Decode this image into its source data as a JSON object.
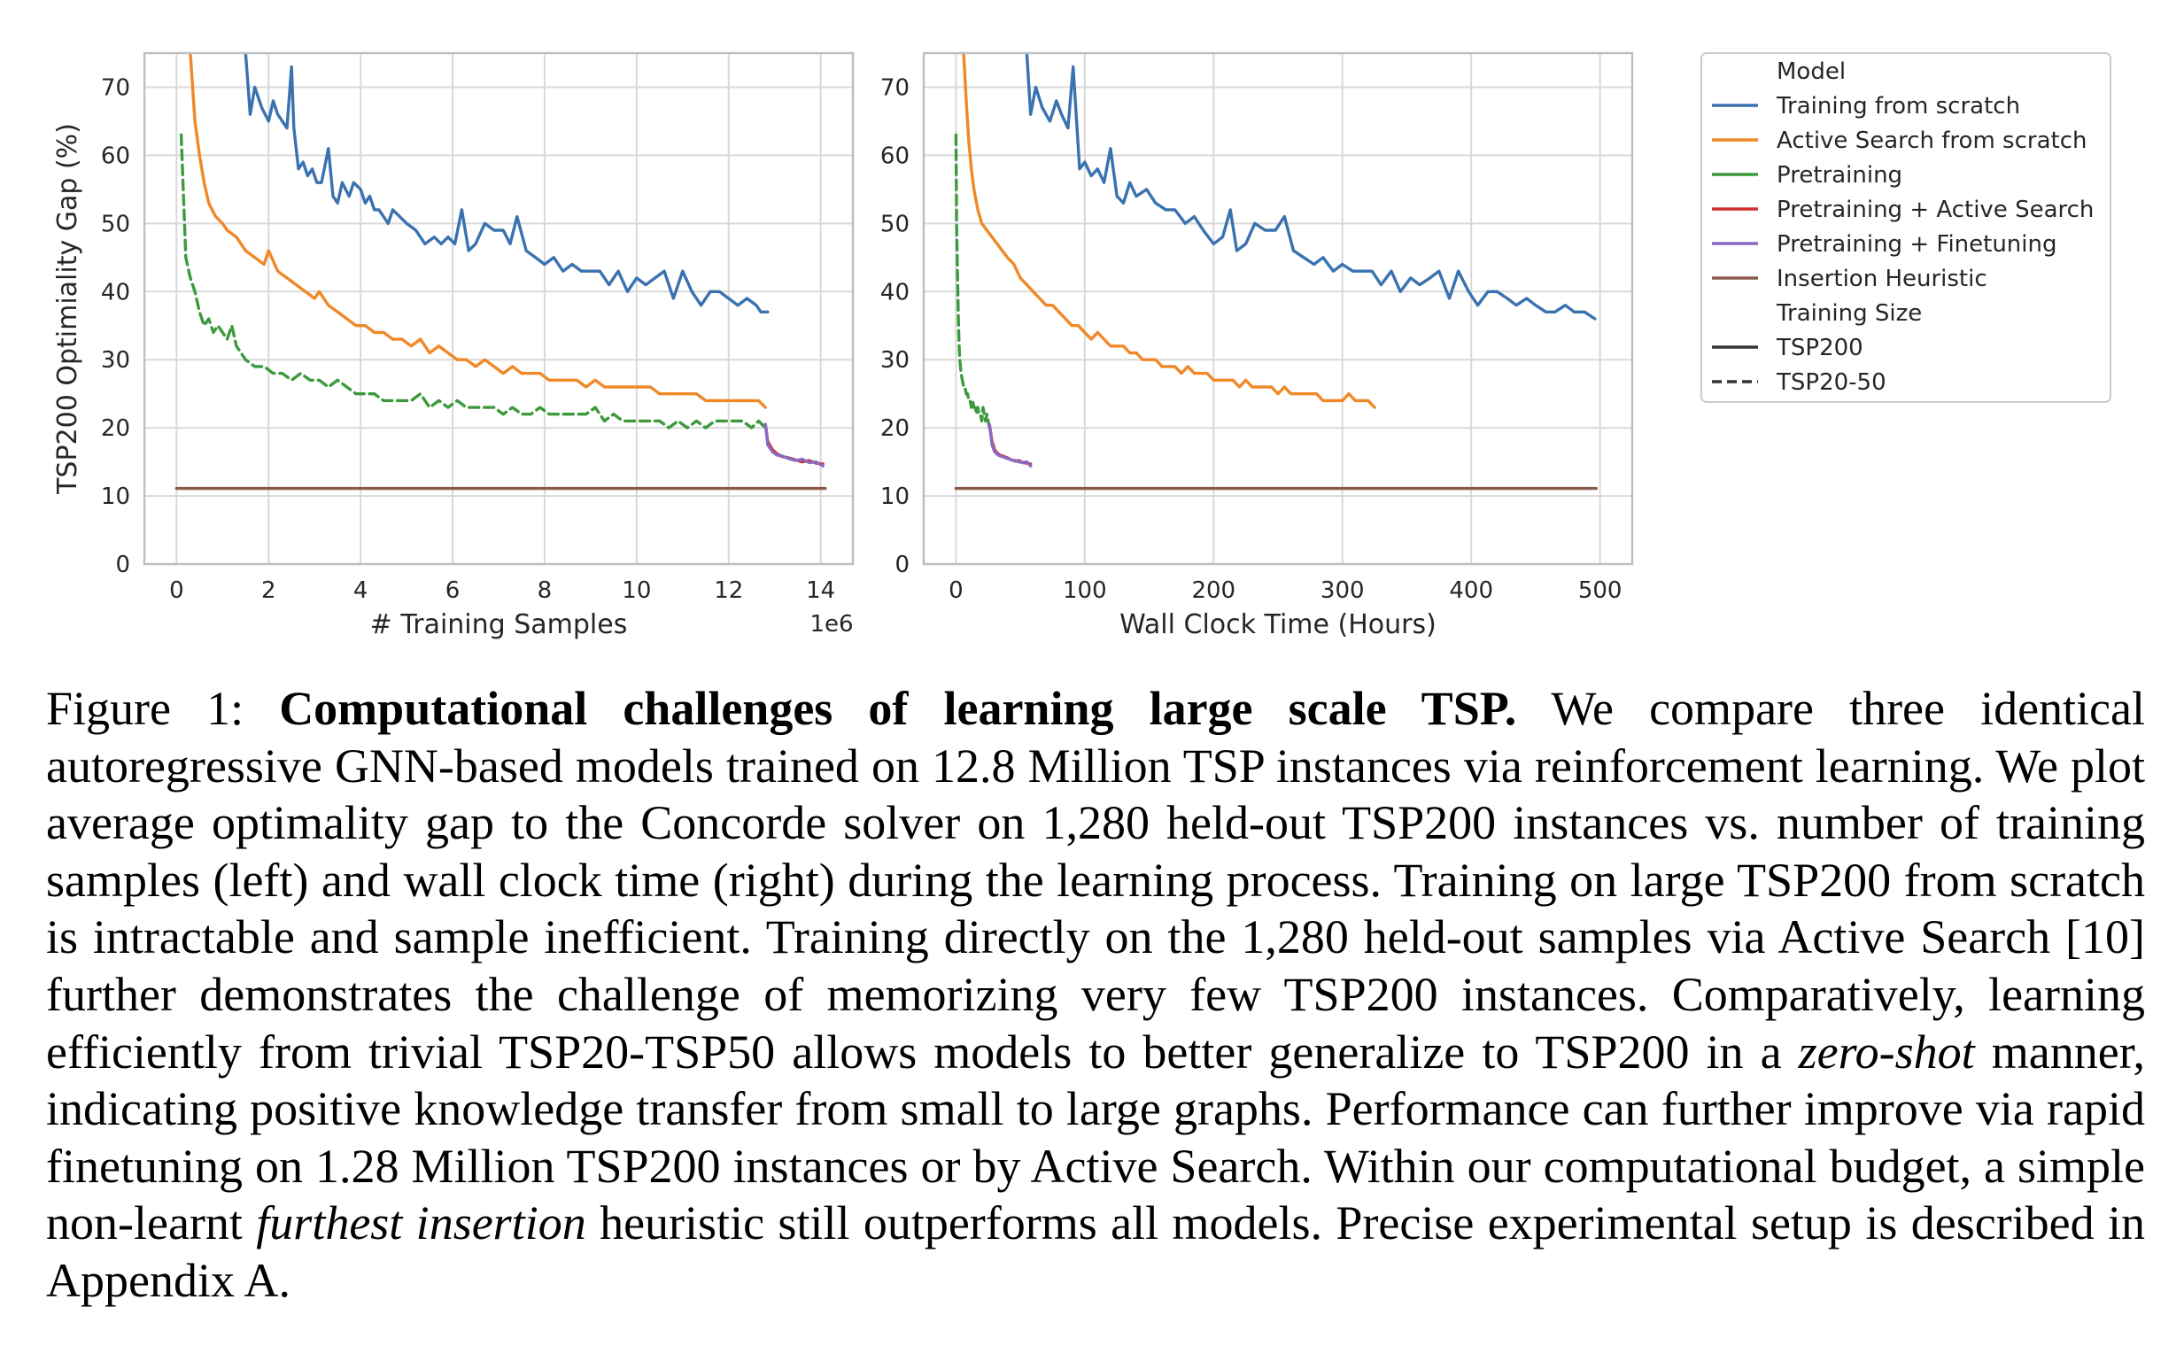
{
  "chart_data": [
    {
      "type": "line",
      "panel": "left",
      "xlabel": "# Training Samples",
      "ylabel": "TSP200 Optimiality Gap (%)",
      "x_offset_label": "1e6",
      "xlim": [
        -0.7,
        14.7
      ],
      "ylim": [
        0,
        75
      ],
      "xticks": [
        0,
        2,
        4,
        6,
        8,
        10,
        12,
        14
      ],
      "yticks": [
        0,
        10,
        20,
        30,
        40,
        50,
        60,
        70
      ],
      "grid": true,
      "series": [
        {
          "name": "Training from scratch",
          "style": "solid",
          "color": "#3a72b0",
          "x": [
            1.5,
            1.6,
            1.7,
            1.85,
            2.0,
            2.1,
            2.2,
            2.3,
            2.4,
            2.5,
            2.55,
            2.65,
            2.75,
            2.85,
            2.95,
            3.05,
            3.15,
            3.3,
            3.4,
            3.5,
            3.6,
            3.75,
            3.85,
            4.0,
            4.1,
            4.2,
            4.3,
            4.4,
            4.6,
            4.7,
            4.85,
            5.0,
            5.2,
            5.4,
            5.6,
            5.75,
            5.9,
            6.05,
            6.2,
            6.35,
            6.5,
            6.7,
            6.9,
            7.1,
            7.25,
            7.4,
            7.6,
            7.8,
            8.0,
            8.2,
            8.4,
            8.6,
            8.8,
            9.0,
            9.2,
            9.4,
            9.6,
            9.8,
            10.0,
            10.2,
            10.4,
            10.6,
            10.8,
            11.0,
            11.2,
            11.4,
            11.6,
            11.8,
            12.0,
            12.2,
            12.4,
            12.6,
            12.7,
            12.85
          ],
          "y": [
            75,
            66,
            70,
            67,
            65,
            68,
            66,
            65,
            64,
            73,
            64,
            58,
            59,
            57,
            58,
            56,
            56,
            61,
            54,
            53,
            56,
            54,
            56,
            55,
            53,
            54,
            52,
            52,
            50,
            52,
            51,
            50,
            49,
            47,
            48,
            47,
            48,
            47,
            52,
            46,
            47,
            50,
            49,
            49,
            47,
            51,
            46,
            45,
            44,
            45,
            43,
            44,
            43,
            43,
            43,
            41,
            43,
            40,
            42,
            41,
            42,
            43,
            39,
            43,
            40,
            38,
            40,
            40,
            39,
            38,
            39,
            38,
            37,
            37
          ]
        },
        {
          "name": "Active Search from scratch",
          "style": "solid",
          "color": "#f08828",
          "x": [
            0.3,
            0.4,
            0.5,
            0.6,
            0.7,
            0.85,
            1.0,
            1.1,
            1.3,
            1.5,
            1.7,
            1.9,
            2.0,
            2.2,
            2.4,
            2.6,
            2.8,
            3.0,
            3.1,
            3.3,
            3.5,
            3.7,
            3.9,
            4.1,
            4.3,
            4.5,
            4.7,
            4.9,
            5.1,
            5.3,
            5.5,
            5.7,
            5.9,
            6.1,
            6.3,
            6.5,
            6.7,
            6.9,
            7.1,
            7.3,
            7.5,
            7.7,
            7.9,
            8.1,
            8.3,
            8.5,
            8.7,
            8.9,
            9.1,
            9.3,
            9.5,
            9.7,
            9.9,
            10.1,
            10.3,
            10.5,
            10.7,
            10.9,
            11.1,
            11.3,
            11.5,
            11.7,
            11.9,
            12.1,
            12.3,
            12.5,
            12.65,
            12.8
          ],
          "y": [
            75,
            65,
            60,
            56,
            53,
            51,
            50,
            49,
            48,
            46,
            45,
            44,
            46,
            43,
            42,
            41,
            40,
            39,
            40,
            38,
            37,
            36,
            35,
            35,
            34,
            34,
            33,
            33,
            32,
            33,
            31,
            32,
            31,
            30,
            30,
            29,
            30,
            29,
            28,
            29,
            28,
            28,
            28,
            27,
            27,
            27,
            27,
            26,
            27,
            26,
            26,
            26,
            26,
            26,
            26,
            25,
            25,
            25,
            25,
            25,
            24,
            24,
            24,
            24,
            24,
            24,
            24,
            23
          ]
        },
        {
          "name": "Pretraining",
          "style": "dashed",
          "color": "#3d9a3d",
          "x": [
            0.1,
            0.2,
            0.3,
            0.4,
            0.5,
            0.6,
            0.7,
            0.8,
            0.9,
            1.0,
            1.1,
            1.2,
            1.3,
            1.4,
            1.5,
            1.7,
            1.9,
            2.1,
            2.3,
            2.5,
            2.7,
            2.9,
            3.1,
            3.3,
            3.5,
            3.7,
            3.9,
            4.1,
            4.3,
            4.5,
            4.7,
            4.9,
            5.1,
            5.3,
            5.5,
            5.7,
            5.9,
            6.1,
            6.3,
            6.5,
            6.7,
            6.9,
            7.1,
            7.3,
            7.5,
            7.7,
            7.9,
            8.1,
            8.3,
            8.5,
            8.7,
            8.9,
            9.1,
            9.3,
            9.5,
            9.7,
            9.9,
            10.1,
            10.3,
            10.5,
            10.7,
            10.9,
            11.1,
            11.3,
            11.5,
            11.7,
            11.9,
            12.1,
            12.3,
            12.5,
            12.65,
            12.8
          ],
          "y": [
            63,
            45,
            42,
            40,
            37,
            35,
            36,
            34,
            35,
            34,
            33,
            35,
            32,
            31,
            30,
            29,
            29,
            28,
            28,
            27,
            28,
            27,
            27,
            26,
            27,
            26,
            25,
            25,
            25,
            24,
            24,
            24,
            24,
            25,
            23,
            24,
            23,
            24,
            23,
            23,
            23,
            23,
            22,
            23,
            22,
            22,
            23,
            22,
            22,
            22,
            22,
            22,
            23,
            21,
            22,
            21,
            21,
            21,
            21,
            21,
            20,
            21,
            20,
            21,
            20,
            21,
            21,
            21,
            21,
            20,
            21,
            20
          ]
        },
        {
          "name": "Pretraining + Active Search",
          "style": "solid",
          "color": "#d03030",
          "x": [
            12.8,
            12.85,
            12.95,
            13.05,
            13.15,
            13.3,
            13.45,
            13.6,
            13.75,
            13.9,
            14.05
          ],
          "y": [
            20.5,
            18,
            16.8,
            16.2,
            15.8,
            15.6,
            15.3,
            15.0,
            15.2,
            14.8,
            14.7
          ]
        },
        {
          "name": "Pretraining + Finetuning",
          "style": "solid",
          "color": "#8a6bc4",
          "x": [
            12.8,
            12.85,
            12.95,
            13.05,
            13.15,
            13.3,
            13.45,
            13.6,
            13.75,
            13.9,
            14.05
          ],
          "y": [
            20.5,
            17.5,
            16.5,
            16.0,
            15.9,
            15.5,
            15.2,
            15.4,
            14.9,
            15.0,
            14.4
          ]
        },
        {
          "name": "Insertion Heuristic",
          "style": "solid",
          "color": "#8c5a4a",
          "x": [
            0,
            14.1
          ],
          "y": [
            11.1,
            11.1
          ]
        }
      ]
    },
    {
      "type": "line",
      "panel": "right",
      "xlabel": "Wall Clock Time (Hours)",
      "ylabel": "",
      "xlim": [
        -25,
        525
      ],
      "ylim": [
        0,
        75
      ],
      "xticks": [
        0,
        100,
        200,
        300,
        400,
        500
      ],
      "yticks": [
        0,
        10,
        20,
        30,
        40,
        50,
        60,
        70
      ],
      "grid": true,
      "series": [
        {
          "name": "Training from scratch",
          "style": "solid",
          "color": "#3a72b0",
          "x": [
            55,
            58,
            62,
            67,
            73,
            78,
            82,
            87,
            91,
            94,
            96,
            100,
            105,
            110,
            115,
            120,
            125,
            130,
            135,
            140,
            148,
            155,
            163,
            170,
            178,
            185,
            192,
            200,
            207,
            213,
            218,
            225,
            232,
            240,
            248,
            255,
            262,
            270,
            278,
            285,
            293,
            300,
            308,
            315,
            323,
            330,
            338,
            345,
            353,
            360,
            368,
            375,
            383,
            390,
            398,
            405,
            413,
            420,
            428,
            435,
            443,
            450,
            458,
            465,
            473,
            480,
            488,
            496
          ],
          "y": [
            75,
            66,
            70,
            67,
            65,
            68,
            66,
            64,
            73,
            64,
            58,
            59,
            57,
            58,
            56,
            61,
            54,
            53,
            56,
            54,
            55,
            53,
            52,
            52,
            50,
            51,
            49,
            47,
            48,
            52,
            46,
            47,
            50,
            49,
            49,
            51,
            46,
            45,
            44,
            45,
            43,
            44,
            43,
            43,
            43,
            41,
            43,
            40,
            42,
            41,
            42,
            43,
            39,
            43,
            40,
            38,
            40,
            40,
            39,
            38,
            39,
            38,
            37,
            37,
            38,
            37,
            37,
            36
          ]
        },
        {
          "name": "Active Search from scratch",
          "style": "solid",
          "color": "#f08828",
          "x": [
            6,
            8,
            10,
            12,
            14,
            17,
            20,
            24,
            28,
            32,
            36,
            40,
            45,
            50,
            55,
            60,
            65,
            70,
            75,
            80,
            85,
            90,
            95,
            100,
            105,
            110,
            115,
            120,
            125,
            130,
            135,
            140,
            145,
            150,
            155,
            160,
            165,
            170,
            175,
            180,
            185,
            190,
            195,
            200,
            205,
            210,
            215,
            220,
            225,
            230,
            235,
            240,
            245,
            250,
            255,
            260,
            265,
            270,
            275,
            280,
            285,
            290,
            295,
            300,
            305,
            310,
            315,
            320,
            325
          ],
          "y": [
            75,
            68,
            62,
            58,
            55,
            52,
            50,
            49,
            48,
            47,
            46,
            45,
            44,
            42,
            41,
            40,
            39,
            38,
            38,
            37,
            36,
            35,
            35,
            34,
            33,
            34,
            33,
            32,
            32,
            32,
            31,
            31,
            30,
            30,
            30,
            29,
            29,
            29,
            28,
            29,
            28,
            28,
            28,
            27,
            27,
            27,
            27,
            26,
            27,
            26,
            26,
            26,
            26,
            25,
            26,
            25,
            25,
            25,
            25,
            25,
            24,
            24,
            24,
            24,
            25,
            24,
            24,
            24,
            23
          ]
        },
        {
          "name": "Pretraining",
          "style": "dashed",
          "color": "#3d9a3d",
          "x": [
            0,
            0.5,
            1,
            1.5,
            2,
            2.5,
            3,
            3.5,
            4,
            5,
            6,
            7,
            8,
            9,
            10,
            11,
            12,
            13,
            14,
            15,
            16,
            17,
            18,
            19,
            20,
            21,
            22,
            23,
            24,
            25,
            26
          ],
          "y": [
            63,
            50,
            45,
            40,
            35,
            32,
            30,
            29,
            28,
            27,
            26,
            26,
            25,
            25,
            24,
            24,
            23,
            24,
            23,
            23,
            22,
            23,
            22,
            22,
            21,
            23,
            22,
            21,
            22,
            21,
            20
          ]
        },
        {
          "name": "Pretraining + Active Search",
          "style": "solid",
          "color": "#d03030",
          "x": [
            26,
            28,
            30,
            32,
            34,
            37,
            40,
            43,
            46,
            49,
            52,
            55,
            58
          ],
          "y": [
            20.5,
            18,
            16.8,
            16.3,
            16,
            15.8,
            15.6,
            15.3,
            15.1,
            15.2,
            14.9,
            14.8,
            14.7
          ]
        },
        {
          "name": "Pretraining + Finetuning",
          "style": "solid",
          "color": "#8a6bc4",
          "x": [
            26,
            28,
            30,
            32,
            34,
            37,
            40,
            43,
            46,
            49,
            52,
            55,
            58
          ],
          "y": [
            20.5,
            17.5,
            16.5,
            16.1,
            15.9,
            15.7,
            15.5,
            15.3,
            15.2,
            15.0,
            14.9,
            15.0,
            14.4
          ]
        },
        {
          "name": "Insertion Heuristic",
          "style": "solid",
          "color": "#8c5a4a",
          "x": [
            0,
            497
          ],
          "y": [
            11.1,
            11.1
          ]
        }
      ]
    }
  ],
  "legend": {
    "placement": "right",
    "model_title": "Model",
    "models": [
      {
        "label": "Training from scratch",
        "color": "#3a72b0"
      },
      {
        "label": "Active Search from scratch",
        "color": "#f08828"
      },
      {
        "label": "Pretraining",
        "color": "#3d9a3d"
      },
      {
        "label": "Pretraining + Active Search",
        "color": "#d03030"
      },
      {
        "label": "Pretraining + Finetuning",
        "color": "#8a6bc4"
      },
      {
        "label": "Insertion Heuristic",
        "color": "#8c5a4a"
      }
    ],
    "size_title": "Training Size",
    "sizes": [
      {
        "label": "TSP200",
        "style": "solid",
        "color": "#333333"
      },
      {
        "label": "TSP20-50",
        "style": "dashed",
        "color": "#333333"
      }
    ]
  },
  "caption": {
    "label": "Figure 1:",
    "bold_title": "Computational challenges of learning large scale TSP.",
    "text_1": "We compare three identical autoregressive GNN-based models trained on 12.8 Million TSP instances via reinforcement learning. We plot average optimality gap to the Concorde solver on 1,280 held-out TSP200 instances vs. number of training samples (left) and wall clock time (right) during the learning process. Training on large TSP200 from scratch is intractable and sample inefficient. Training directly on the 1,280 held-out samples via Active Search [10] further demonstrates the challenge of memorizing very few TSP200 instances. Comparatively, learning efficiently from trivial TSP20-TSP50 allows models to better generalize to TSP200 in a",
    "italic_1": "zero-shot",
    "text_2": "manner, indicating positive knowledge transfer from small to large graphs. Performance can further improve via rapid finetuning on 1.28 Million TSP200 instances or by Active Search. Within our computational budget, a simple non-learnt",
    "italic_2": "furthest insertion",
    "text_3": "heuristic still outperforms all models. Precise experimental setup is described in Appendix A."
  }
}
